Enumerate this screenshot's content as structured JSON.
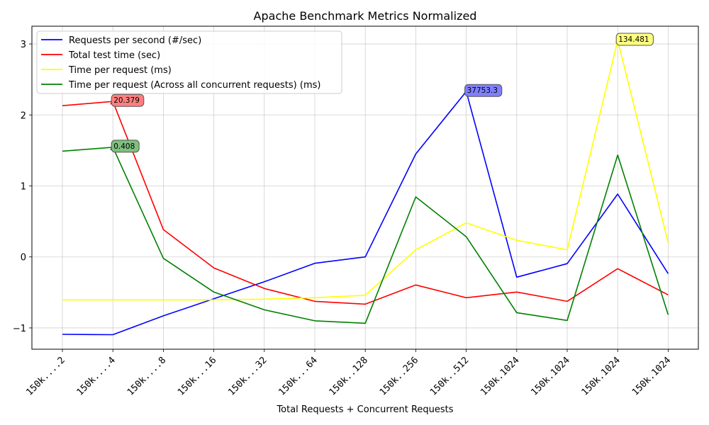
{
  "chart_data": {
    "type": "line",
    "title": "Apache Benchmark Metrics Normalized",
    "xlabel": "Total Requests + Concurrent Requests",
    "ylabel": "",
    "ylim": [
      -1.3,
      3.25
    ],
    "yticks": [
      -1,
      0,
      1,
      2,
      3
    ],
    "ytick_labels": [
      "−1",
      "0",
      "1",
      "2",
      "3"
    ],
    "grid": true,
    "legend_position": "top-left",
    "categories": [
      "150k....2",
      "150k....4",
      "150k....8",
      "150k...16",
      "150k...32",
      "150k...64",
      "150k..128",
      "150k..256",
      "150k..512",
      "150k.1024",
      "150k.1024",
      "150k.1024",
      "150k.1024"
    ],
    "series": [
      {
        "name": "Requests per second (#/sec)",
        "color": "#0000ff",
        "values": [
          -1.09,
          -1.095,
          -0.83,
          -0.59,
          -0.35,
          -0.09,
          0.0,
          1.45,
          2.33,
          -0.285,
          -0.095,
          0.885,
          -0.235
        ]
      },
      {
        "name": "Total test time (sec)",
        "color": "#ff0000",
        "values": [
          2.13,
          2.19,
          0.385,
          -0.155,
          -0.445,
          -0.625,
          -0.665,
          -0.395,
          -0.575,
          -0.495,
          -0.625,
          -0.165,
          -0.535
        ]
      },
      {
        "name": "Time per request (ms)",
        "color": "#ffff00",
        "values": [
          -0.605,
          -0.605,
          -0.605,
          -0.605,
          -0.595,
          -0.575,
          -0.54,
          0.1,
          0.48,
          0.235,
          0.1,
          3.05,
          0.2
        ]
      },
      {
        "name": "Time per request (Across all concurrent requests) (ms)",
        "color": "#008000",
        "values": [
          1.49,
          1.545,
          -0.02,
          -0.495,
          -0.745,
          -0.9,
          -0.935,
          0.845,
          0.285,
          -0.785,
          -0.895,
          1.435,
          -0.815
        ]
      }
    ],
    "annotations": [
      {
        "series": 1,
        "index": 1,
        "text": "20.379",
        "box_color": "#ff7f7f"
      },
      {
        "series": 3,
        "index": 1,
        "text": "0.408",
        "box_color": "#7fbf7f"
      },
      {
        "series": 0,
        "index": 8,
        "text": "37753.3",
        "box_color": "#7f7fff"
      },
      {
        "series": 2,
        "index": 11,
        "text": "134.481",
        "box_color": "#ffff7f"
      }
    ]
  }
}
